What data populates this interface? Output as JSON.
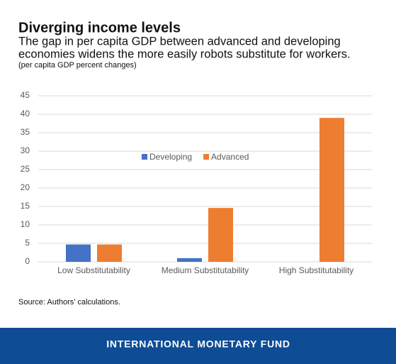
{
  "chart_data": {
    "type": "bar",
    "title": "Diverging income levels",
    "subtitle": [
      "The gap in per capita GDP between advanced and developing",
      "economies widens the more easily robots substitute for workers."
    ],
    "note": "(per capita GDP percent changes)",
    "categories": [
      "Low Substitutability",
      "Medium Substitutability",
      "High Substitutability"
    ],
    "series": [
      {
        "name": "Developing",
        "color": "#4472c4",
        "values": [
          4.7,
          1,
          0
        ]
      },
      {
        "name": "Advanced",
        "color": "#ed7d31",
        "values": [
          4.7,
          14.6,
          39
        ]
      }
    ],
    "ylim": [
      0,
      45
    ],
    "yticks": [
      0,
      5,
      10,
      15,
      20,
      25,
      30,
      35,
      40,
      45
    ],
    "grid": true,
    "source": "Source: Authors’ calculations."
  },
  "footer": {
    "text": "INTERNATIONAL MONETARY FUND"
  }
}
